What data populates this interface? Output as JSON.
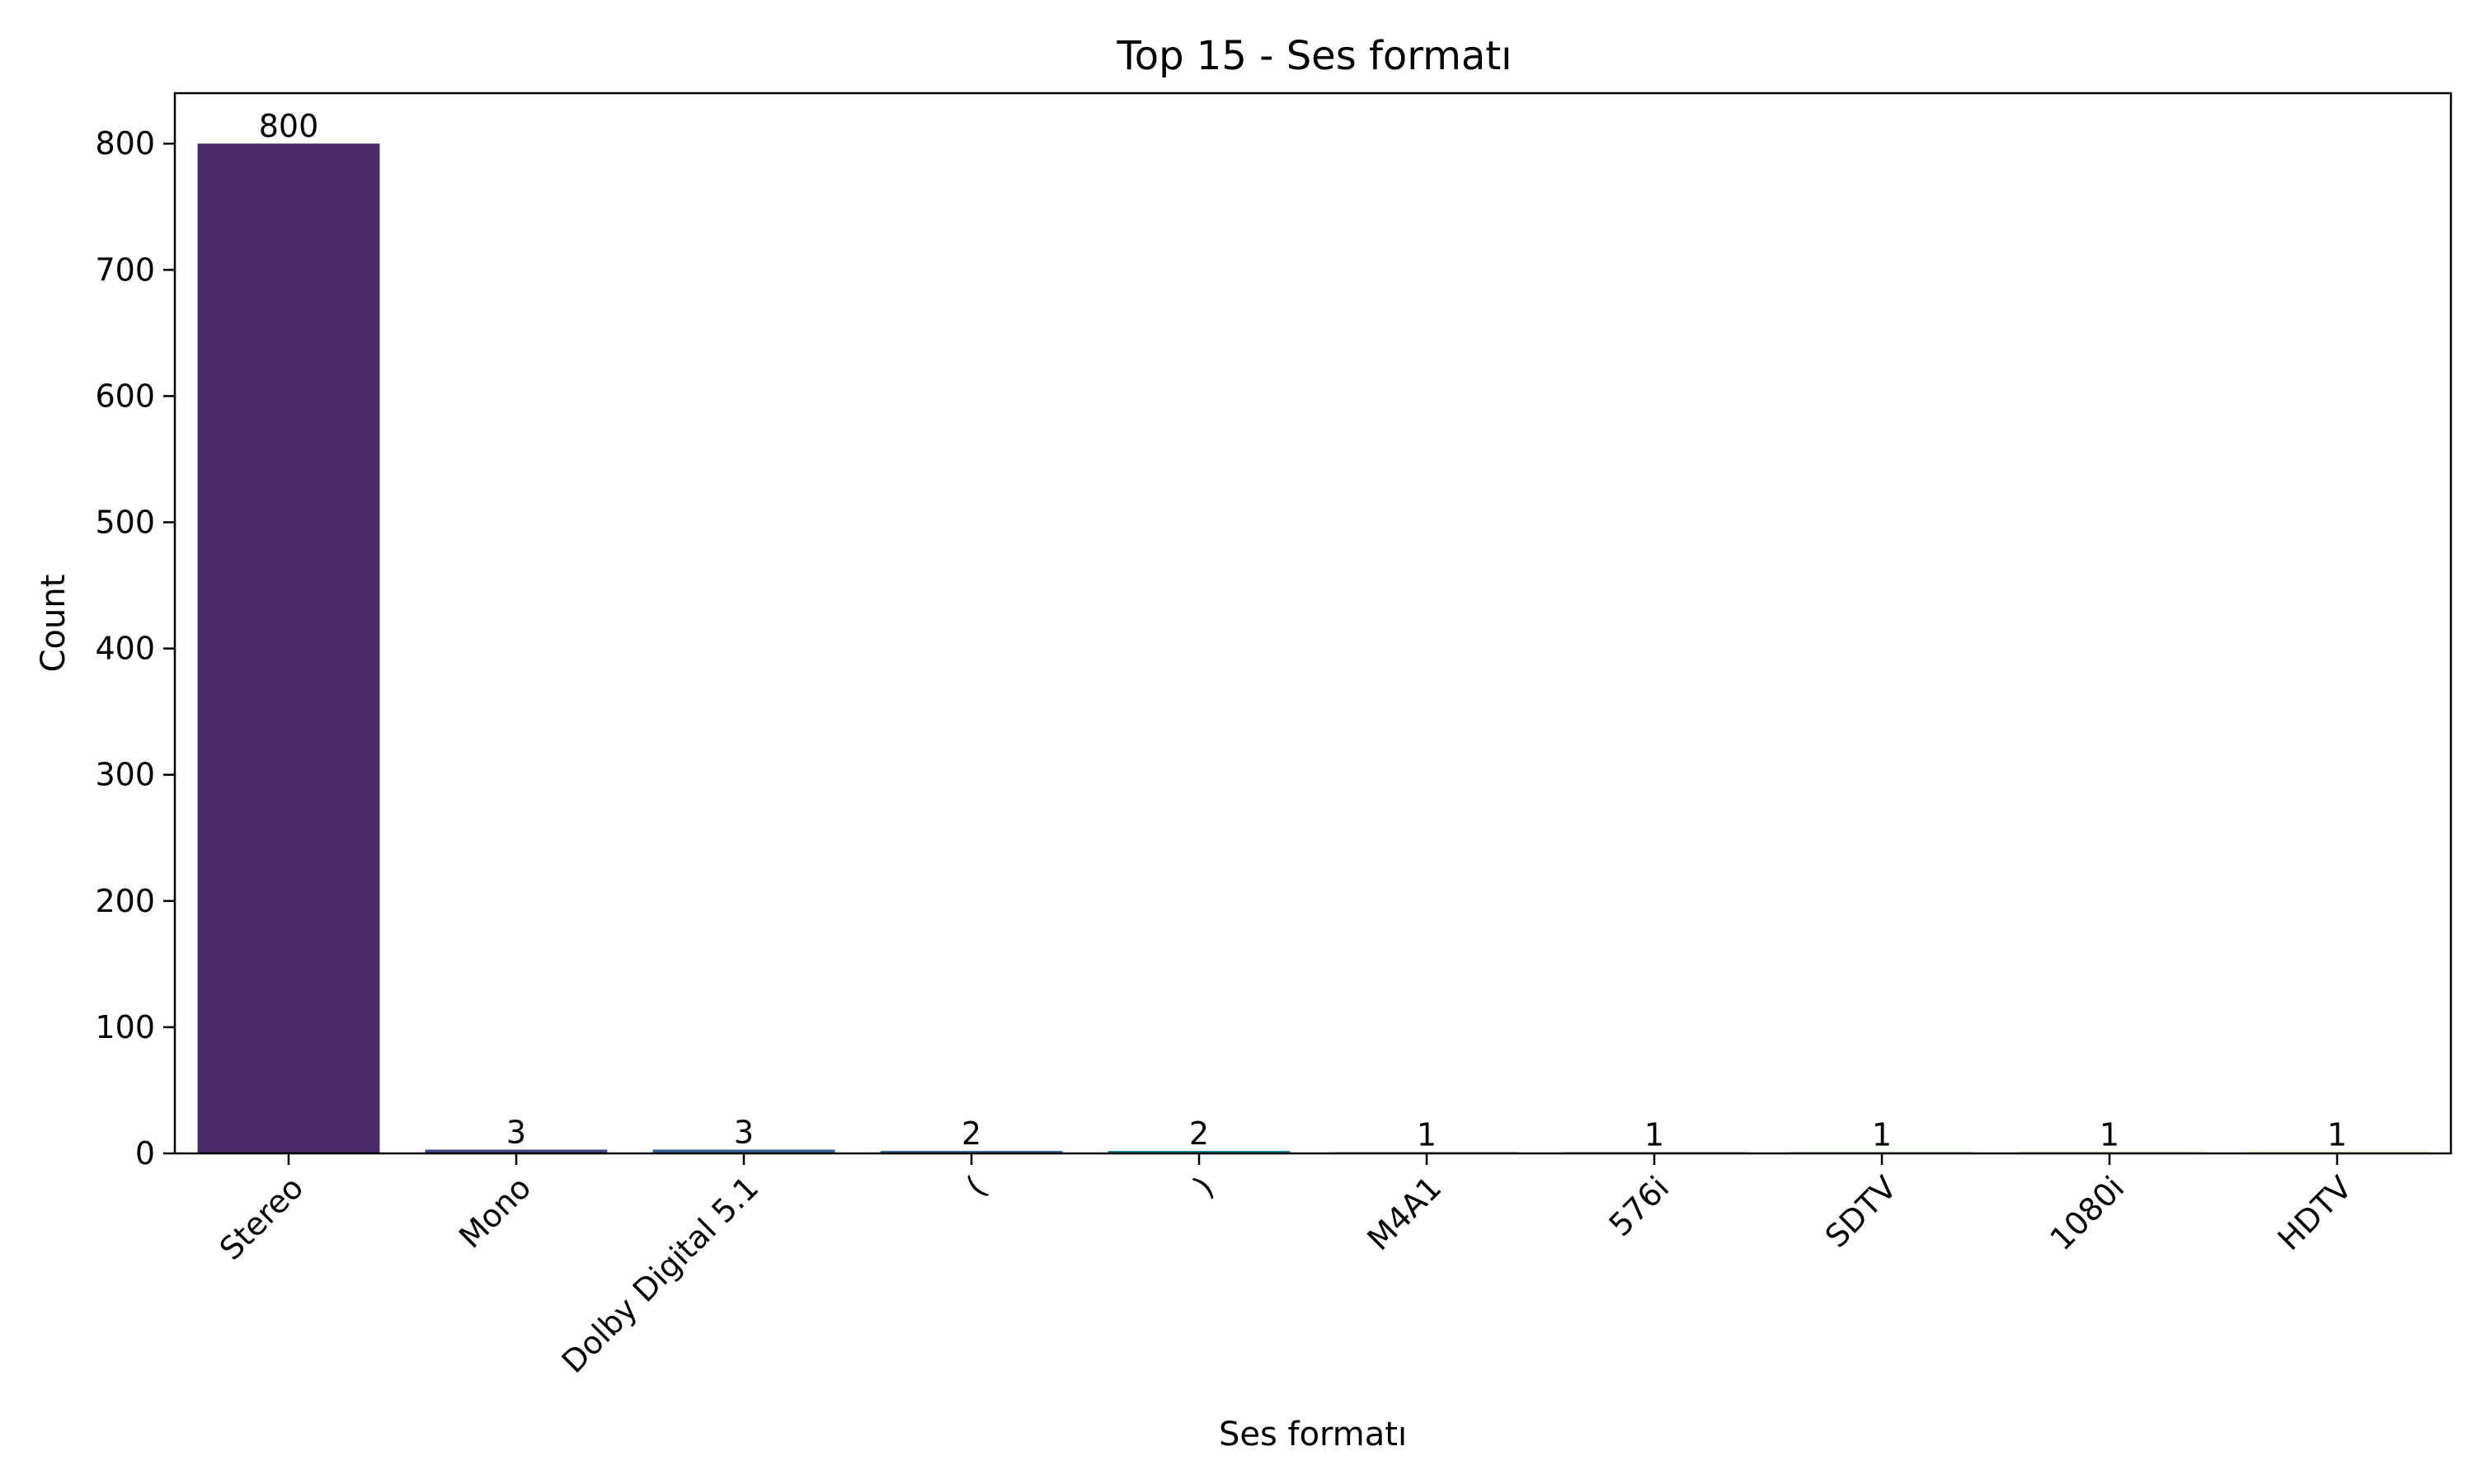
{
  "chart_data": {
    "type": "bar",
    "title": "Top 15 - Ses formatı",
    "xlabel": "Ses formatı",
    "ylabel": "Count",
    "categories": [
      "Stereo",
      "Mono",
      "Dolby Digital 5.1",
      "(",
      ")",
      "M4A1",
      "576i",
      "SDTV",
      "1080i",
      "HDTV"
    ],
    "values": [
      800,
      3,
      3,
      2,
      2,
      1,
      1,
      1,
      1,
      1
    ],
    "data_labels": [
      "800",
      "3",
      "3",
      "2",
      "2",
      "1",
      "1",
      "1",
      "1",
      "1"
    ],
    "ylim": [
      0,
      840
    ],
    "yticks": [
      0,
      100,
      200,
      300,
      400,
      500,
      600,
      700,
      800
    ],
    "ytick_labels": [
      "0",
      "100",
      "200",
      "300",
      "400",
      "500",
      "600",
      "700",
      "800"
    ],
    "grid": false,
    "legend": "none",
    "colors": [
      "#482966",
      "#3f4788",
      "#345e8d",
      "#2a768e",
      "#218e8d",
      "#23a682",
      "#3cbc74",
      "#6acd5b",
      "#a2da37",
      "#dde318"
    ]
  }
}
